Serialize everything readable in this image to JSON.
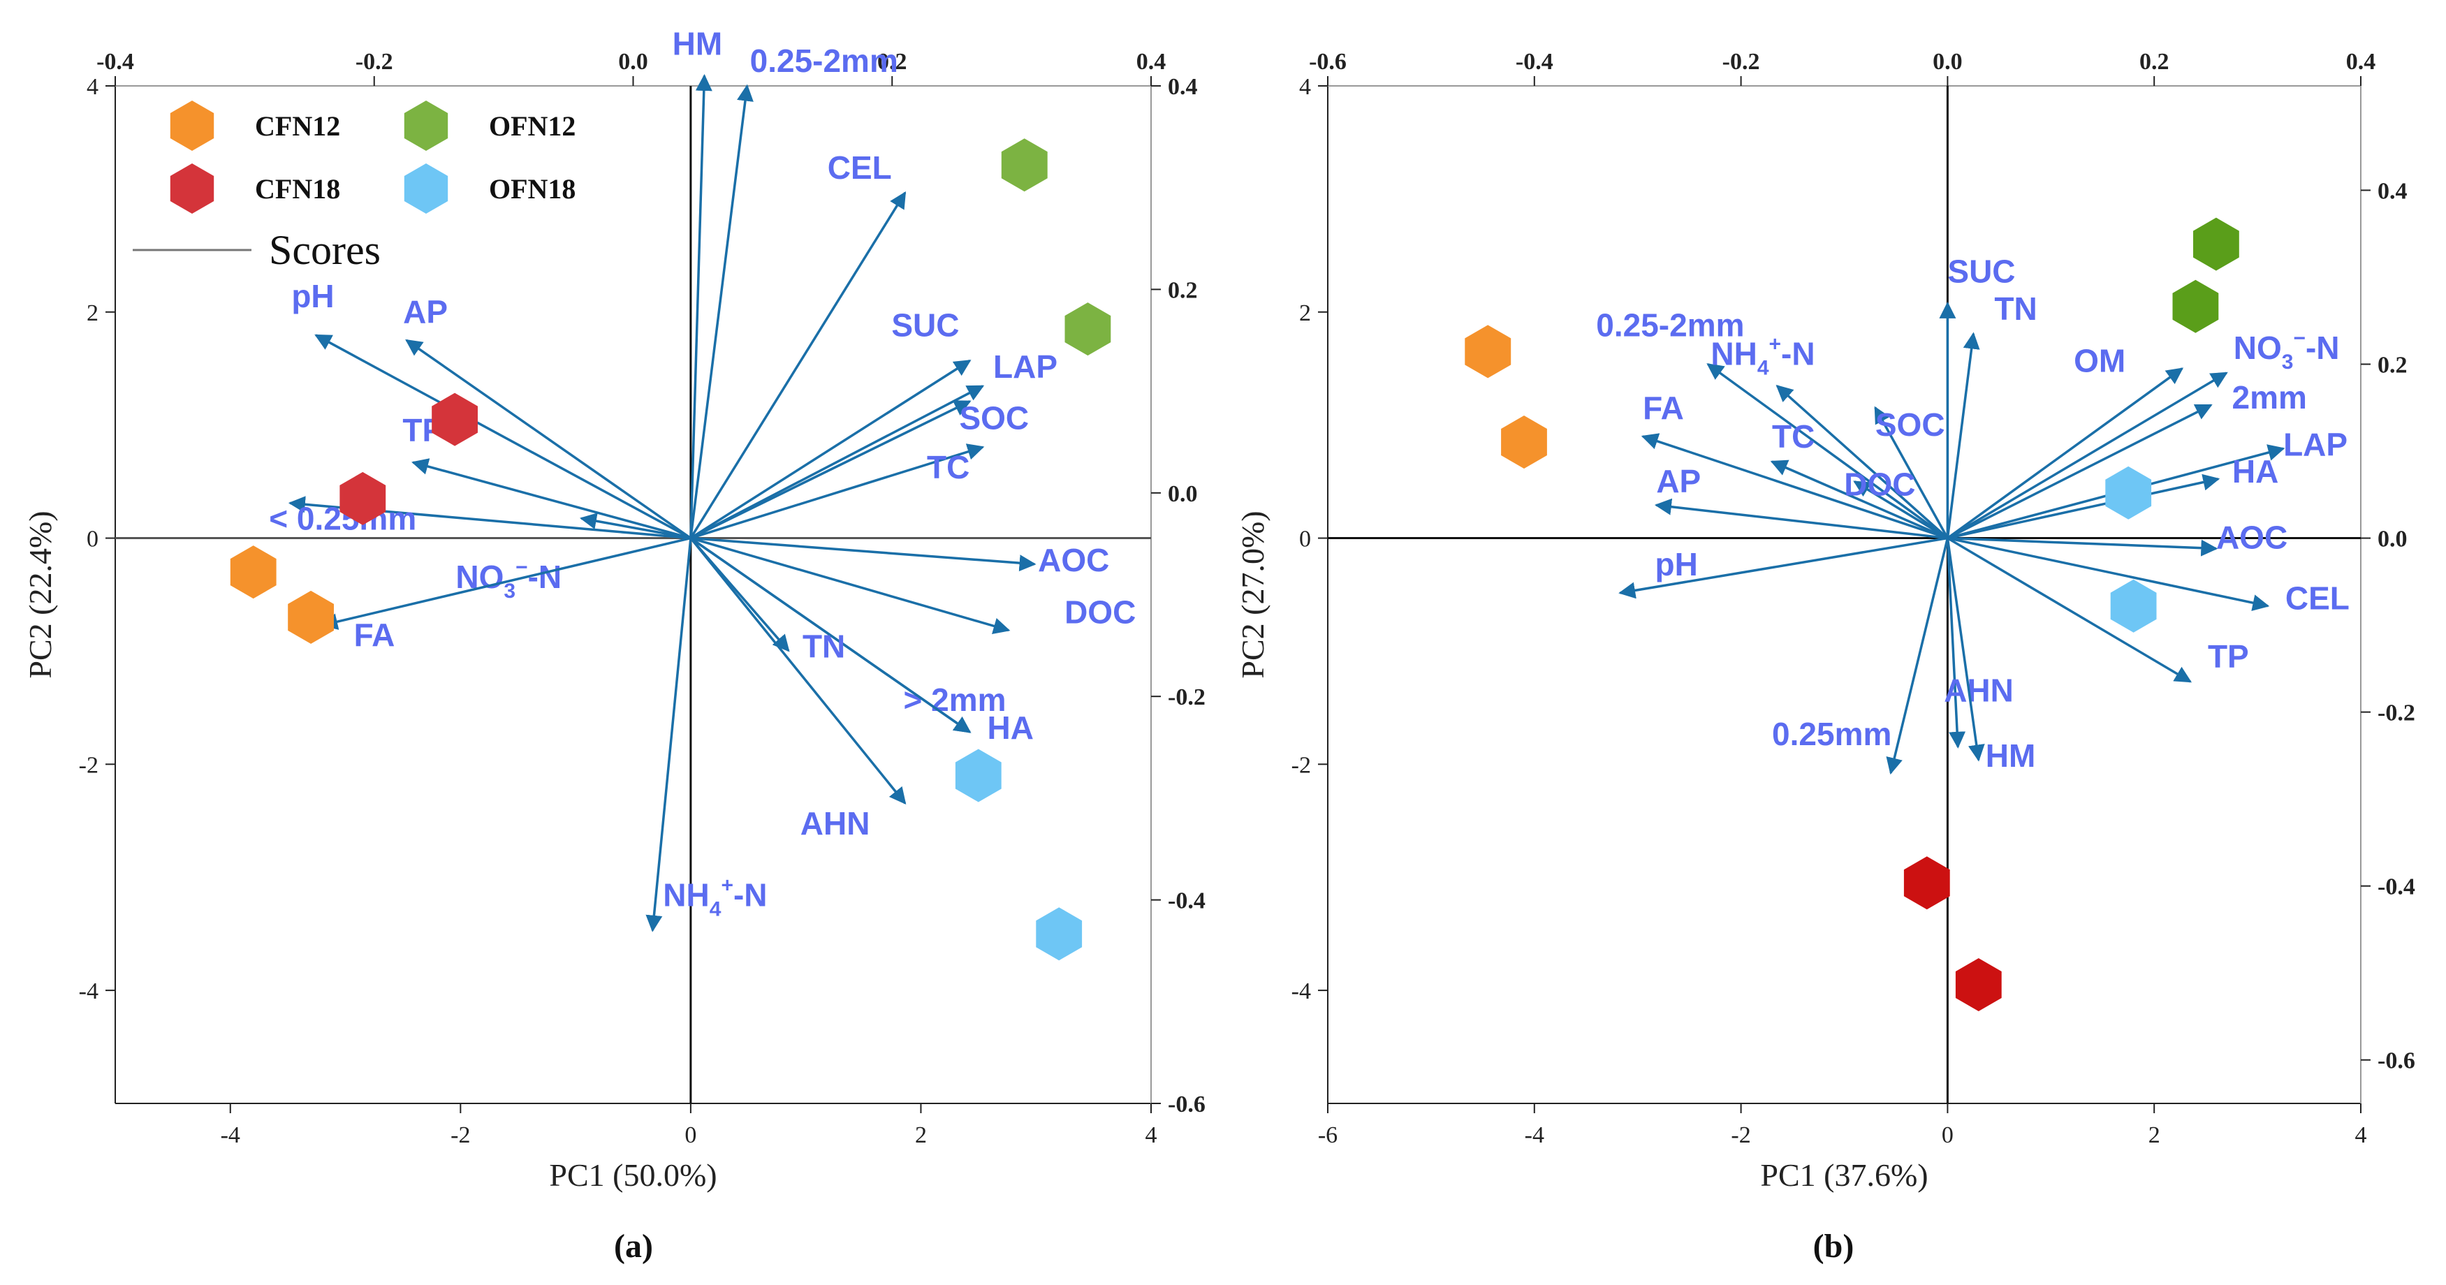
{
  "chart_data": [
    {
      "type": "scatter",
      "panel_label": "(a)",
      "xlabel": "PC1 (50.0%)",
      "ylabel": "PC2 (22.4%)",
      "xlim": [
        -5,
        4
      ],
      "ylim": [
        -5,
        4
      ],
      "xticks": [
        -4,
        -2,
        0,
        2,
        4
      ],
      "yticks": [
        -4,
        -2,
        0,
        2,
        4
      ],
      "top_xlim": [
        -0.4,
        0.4
      ],
      "top_xticks": [
        "-0.4",
        "-0.2",
        "0.0",
        "0.2",
        "0.4"
      ],
      "right_ylim": [
        -0.6,
        0.4
      ],
      "right_yticks": [
        "-0.6",
        "-0.4",
        "-0.2",
        "0.0",
        "0.2",
        "0.4"
      ],
      "legend": {
        "entries": [
          {
            "name": "CFN12",
            "color": "#f5922c"
          },
          {
            "name": "CFN18",
            "color": "#d4343a"
          },
          {
            "name": "OFN12",
            "color": "#7cb342"
          },
          {
            "name": "OFN18",
            "color": "#6ec6f5"
          }
        ],
        "line_label": "Scores",
        "position": "top-left"
      },
      "series": [
        {
          "name": "CFN12",
          "color": "#f5922c",
          "points": [
            [
              -3.8,
              -0.3
            ],
            [
              -3.3,
              -0.7
            ]
          ]
        },
        {
          "name": "CFN18",
          "color": "#d4343a",
          "points": [
            [
              -2.05,
              1.05
            ],
            [
              -2.85,
              0.35
            ]
          ]
        },
        {
          "name": "OFN12",
          "color": "#7cb342",
          "points": [
            [
              2.9,
              3.3
            ],
            [
              3.45,
              1.85
            ]
          ]
        },
        {
          "name": "OFN18",
          "color": "#6ec6f5",
          "points": [
            [
              2.5,
              -2.1
            ],
            [
              3.2,
              -3.5
            ]
          ]
        }
      ],
      "loadings": [
        {
          "label": "HM",
          "x": 0.055,
          "y": 0.41
        },
        {
          "label": "0.25-2mm",
          "x": 0.088,
          "y": 0.4
        },
        {
          "label": "CEL",
          "x": 0.21,
          "y": 0.295
        },
        {
          "label": "SUC",
          "x": 0.26,
          "y": 0.13
        },
        {
          "label": "LAP",
          "x": 0.27,
          "y": 0.105
        },
        {
          "label": "SOC",
          "x": 0.26,
          "y": 0.09
        },
        {
          "label": "TC",
          "x": 0.27,
          "y": 0.045
        },
        {
          "label": "AOC",
          "x": 0.31,
          "y": -0.07
        },
        {
          "label": "DOC",
          "x": 0.29,
          "y": -0.135
        },
        {
          "label": "> 2mm",
          "x": 0.26,
          "y": -0.235
        },
        {
          "label": "HA",
          "x": 0.26,
          "y": -0.235
        },
        {
          "label": "AHN",
          "x": 0.21,
          "y": -0.305
        },
        {
          "label": "TN",
          "x": 0.12,
          "y": -0.155
        },
        {
          "label": "NH4+-N",
          "x": 0.015,
          "y": -0.43
        },
        {
          "label": "NO3−-N",
          "x": -0.04,
          "y": -0.025
        },
        {
          "label": "FA",
          "x": -0.24,
          "y": -0.13
        },
        {
          "label": "< 0.25mm",
          "x": -0.265,
          "y": -0.01
        },
        {
          "label": "TP",
          "x": -0.17,
          "y": 0.03
        },
        {
          "label": "AP",
          "x": -0.175,
          "y": 0.15
        },
        {
          "label": "pH",
          "x": -0.245,
          "y": 0.155
        }
      ]
    },
    {
      "type": "scatter",
      "panel_label": "(b)",
      "xlabel": "PC1 (37.6%)",
      "ylabel": "PC2 (27.0%)",
      "xlim": [
        -6,
        4
      ],
      "ylim": [
        -5,
        4
      ],
      "xticks": [
        -6,
        -4,
        -2,
        0,
        2,
        4
      ],
      "yticks": [
        -4,
        -2,
        0,
        2,
        4
      ],
      "top_xlim": [
        -0.6,
        0.4
      ],
      "top_xticks": [
        "-0.6",
        "-0.4",
        "-0.2",
        "0.0",
        "0.2",
        "0.4"
      ],
      "right_ylim": [
        -0.65,
        0.52
      ],
      "right_yticks": [
        "-0.6",
        "-0.4",
        "-0.2",
        "0.0",
        "0.2",
        "0.4"
      ],
      "series": [
        {
          "name": "CFN12",
          "color": "#f5922c",
          "points": [
            [
              -4.45,
              1.65
            ],
            [
              -4.1,
              0.85
            ]
          ]
        },
        {
          "name": "CFN18",
          "color": "#cc1111",
          "points": [
            [
              -0.2,
              -3.05
            ],
            [
              0.3,
              -3.95
            ]
          ]
        },
        {
          "name": "OFN12",
          "color": "#5a9e1a",
          "points": [
            [
              2.6,
              2.6
            ],
            [
              2.4,
              2.05
            ]
          ]
        },
        {
          "name": "OFN18",
          "color": "#6ec6f5",
          "points": [
            [
              1.75,
              0.4
            ],
            [
              1.8,
              -0.6
            ]
          ]
        }
      ],
      "loadings": [
        {
          "label": "SUC",
          "x": 0.0,
          "y": 0.27
        },
        {
          "label": "TN",
          "x": 0.025,
          "y": 0.235
        },
        {
          "label": "0.25-2mm",
          "x": -0.232,
          "y": 0.2
        },
        {
          "label": "NH4+-N",
          "x": -0.165,
          "y": 0.175
        },
        {
          "label": "SOC",
          "x": -0.07,
          "y": 0.15
        },
        {
          "label": "FA",
          "x": -0.295,
          "y": 0.117
        },
        {
          "label": "TC",
          "x": -0.17,
          "y": 0.088
        },
        {
          "label": "DOC",
          "x": -0.09,
          "y": 0.065
        },
        {
          "label": "AP",
          "x": -0.282,
          "y": 0.038
        },
        {
          "label": "pH",
          "x": -0.317,
          "y": -0.063
        },
        {
          "label": "OM",
          "x": 0.227,
          "y": 0.195
        },
        {
          "label": "NO3−-N",
          "x": 0.27,
          "y": 0.19
        },
        {
          "label": "2mm",
          "x": 0.255,
          "y": 0.153
        },
        {
          "label": "LAP",
          "x": 0.325,
          "y": 0.103
        },
        {
          "label": "HA",
          "x": 0.262,
          "y": 0.068
        },
        {
          "label": "AOC",
          "x": 0.26,
          "y": -0.012
        },
        {
          "label": "CEL",
          "x": 0.31,
          "y": -0.078
        },
        {
          "label": "TP",
          "x": 0.235,
          "y": -0.165
        },
        {
          "label": "AHN",
          "x": 0.01,
          "y": -0.24
        },
        {
          "label": "HM",
          "x": 0.03,
          "y": -0.255
        },
        {
          "label": "0.25mm",
          "x": -0.055,
          "y": -0.27
        }
      ]
    }
  ]
}
